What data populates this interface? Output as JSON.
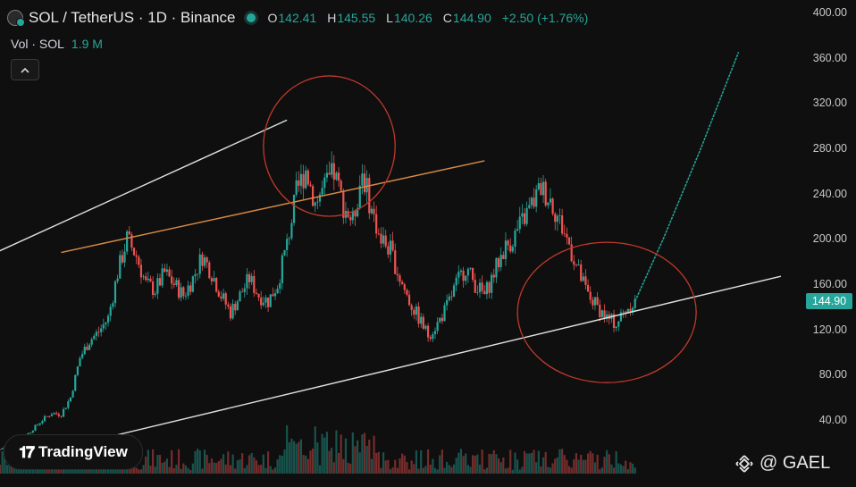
{
  "header": {
    "symbol": "SOL / TetherUS · 1D · Binance",
    "ohlc": {
      "o_label": "O",
      "o": "142.41",
      "h_label": "H",
      "h": "145.55",
      "l_label": "L",
      "l": "140.26",
      "c_label": "C",
      "c": "144.90",
      "change": "+2.50 (+1.76%)"
    }
  },
  "volume": {
    "label": "Vol · SOL",
    "value": "1.9 M"
  },
  "collapse_icon": "chevron-up-icon",
  "price_axis": {
    "ticks": [
      "400.00",
      "360.00",
      "320.00",
      "280.00",
      "240.00",
      "200.00",
      "160.00",
      "120.00",
      "80.00",
      "40.00"
    ],
    "current_price": "144.90"
  },
  "branding": {
    "logo_text": "TradingView",
    "watermark": "@ GAEL"
  },
  "colors": {
    "up": "#26a69a",
    "down": "#ef5350",
    "background": "#0f0f0f",
    "trend_line": "#e0e0e0",
    "resistance_line": "#d88a45",
    "circle": "#c0392b"
  },
  "chart_data": {
    "type": "candlestick",
    "title": "SOL / TetherUS · 1D · Binance",
    "ylim": [
      0,
      400
    ],
    "y_ticks": [
      40,
      80,
      120,
      160,
      200,
      240,
      280,
      320,
      360,
      400
    ],
    "last_close": 144.9,
    "price_path": [
      [
        0,
        14
      ],
      [
        2,
        19
      ],
      [
        5,
        24
      ],
      [
        7,
        32
      ],
      [
        9,
        40
      ],
      [
        11,
        46
      ],
      [
        13,
        45
      ],
      [
        15,
        60
      ],
      [
        17,
        95
      ],
      [
        19,
        110
      ],
      [
        21,
        118
      ],
      [
        23,
        130
      ],
      [
        25,
        170
      ],
      [
        27,
        200
      ],
      [
        29,
        185
      ],
      [
        31,
        160
      ],
      [
        33,
        155
      ],
      [
        35,
        170
      ],
      [
        37,
        160
      ],
      [
        39,
        150
      ],
      [
        41,
        165
      ],
      [
        43,
        185
      ],
      [
        45,
        170
      ],
      [
        47,
        150
      ],
      [
        49,
        135
      ],
      [
        51,
        150
      ],
      [
        53,
        165
      ],
      [
        55,
        150
      ],
      [
        57,
        145
      ],
      [
        59,
        160
      ],
      [
        61,
        195
      ],
      [
        63,
        240
      ],
      [
        65,
        262
      ],
      [
        67,
        232
      ],
      [
        69,
        245
      ],
      [
        71,
        258
      ],
      [
        73,
        230
      ],
      [
        75,
        215
      ],
      [
        77,
        260
      ],
      [
        79,
        225
      ],
      [
        81,
        200
      ],
      [
        83,
        190
      ],
      [
        85,
        165
      ],
      [
        87,
        145
      ],
      [
        89,
        130
      ],
      [
        91,
        115
      ],
      [
        93,
        125
      ],
      [
        95,
        140
      ],
      [
        97,
        160
      ],
      [
        99,
        175
      ],
      [
        101,
        160
      ],
      [
        103,
        150
      ],
      [
        105,
        170
      ],
      [
        107,
        190
      ],
      [
        109,
        200
      ],
      [
        111,
        215
      ],
      [
        113,
        230
      ],
      [
        115,
        245
      ],
      [
        117,
        235
      ],
      [
        119,
        215
      ],
      [
        121,
        195
      ],
      [
        123,
        170
      ],
      [
        125,
        150
      ],
      [
        127,
        140
      ],
      [
        129,
        130
      ],
      [
        131,
        125
      ],
      [
        133,
        138
      ],
      [
        135,
        144.9
      ]
    ],
    "projection": [
      [
        135,
        144.9
      ],
      [
        141,
        200
      ],
      [
        149,
        280
      ],
      [
        157,
        365
      ]
    ],
    "volume_series": [
      1.2,
      0.8,
      1.5,
      2.1,
      1.0,
      0.9,
      1.4,
      3.2,
      2.5,
      1.8,
      1.1,
      2.0,
      1.6,
      0.9,
      2.4,
      1.3,
      1.9
    ],
    "annotations": [
      {
        "kind": "line",
        "color": "trend",
        "from": [
          -4,
          182
        ],
        "to": [
          61,
          305
        ]
      },
      {
        "kind": "line",
        "color": "trend",
        "from": [
          10,
          12
        ],
        "to": [
          166,
          167
        ]
      },
      {
        "kind": "line",
        "color": "resistance",
        "from": [
          13,
          188
        ],
        "to": [
          103,
          269
        ]
      },
      {
        "kind": "circle",
        "center": [
          70,
          282
        ],
        "radius_x": 14,
        "radius_y": 62
      },
      {
        "kind": "circle",
        "center": [
          129,
          135
        ],
        "radius_x": 19,
        "radius_y": 62
      }
    ]
  }
}
